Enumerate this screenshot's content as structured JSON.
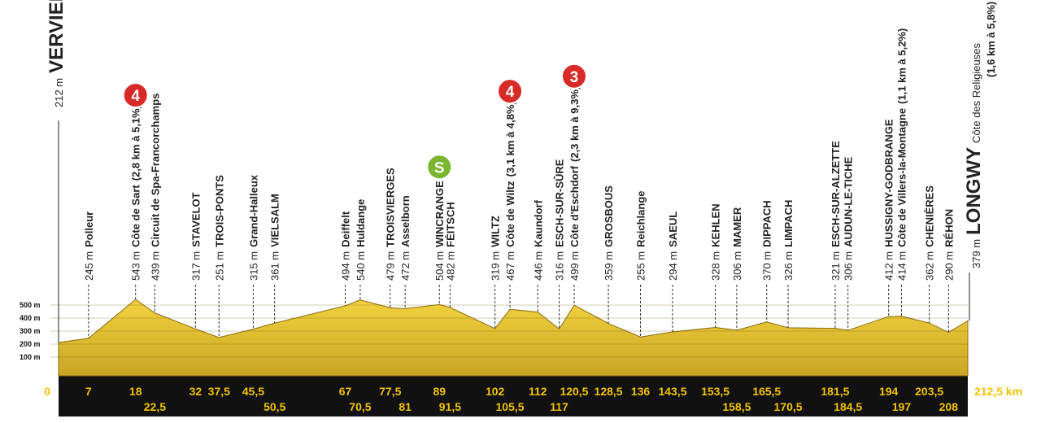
{
  "chart_data": {
    "type": "area",
    "x": [
      0,
      7,
      18,
      22.5,
      32,
      37.5,
      45.5,
      50.5,
      67,
      70.5,
      77.5,
      81,
      89,
      91.5,
      102,
      105.5,
      112,
      117,
      120.5,
      128.5,
      136,
      143.5,
      153.5,
      158.5,
      165.5,
      170.5,
      181.5,
      184.5,
      194,
      197,
      203.5,
      208,
      212.5
    ],
    "values": [
      212,
      245,
      543,
      439,
      317,
      251,
      315,
      361,
      494,
      540,
      479,
      472,
      504,
      482,
      319,
      467,
      446,
      316,
      499,
      359,
      255,
      294,
      328,
      306,
      370,
      326,
      321,
      306,
      412,
      414,
      362,
      290,
      379
    ],
    "value_labels": [
      "212 m",
      "245 m",
      "543 m",
      "439 m",
      "317 m",
      "251 m",
      "315 m",
      "361 m",
      "494 m",
      "540 m",
      "479 m",
      "472 m",
      "504 m",
      "482 m",
      "319 m",
      "467 m",
      "446 m",
      "316 m",
      "499 m",
      "359 m",
      "255 m",
      "294 m",
      "328 m",
      "306 m",
      "370 m",
      "326 m",
      "321 m",
      "306 m",
      "412 m",
      "414 m",
      "362 m",
      "290 m",
      "379 m"
    ],
    "names": [
      "VERVIERS",
      "Polleur",
      "Côte de Sart",
      "Circuit de Spa-Francorchamps",
      "STAVELOT",
      "TROIS-PONTS",
      "Grand-Halleux",
      "VIELSALM",
      "Deiffelt",
      "Huldange",
      "TROISVIERGES",
      "Asselborn",
      "WINCRANGE",
      "FÉITSCH",
      "WILTZ",
      "Côte de Wiltz",
      "Kaundorf",
      "ESCH-SUR-SÛRE",
      "Côte d'Eschdorf",
      "GROSBOUS",
      "Reichlange",
      "SAEUL",
      "KEHLEN",
      "MAMER",
      "DIPPACH",
      "LIMPACH",
      "ESCH-SUR-ALZETTE",
      "AUDUN-LE-TICHE",
      "HUSSIGNY-GODBRANGE",
      "Côte de Villers-la-Montagne",
      "CHENIÈRES",
      "RÉHON",
      "LONGWY"
    ],
    "details": [
      null,
      null,
      "(2,8 km à 5,1%)",
      null,
      null,
      null,
      null,
      null,
      null,
      null,
      null,
      null,
      null,
      null,
      null,
      "(3,1 km à 4,8%)",
      null,
      null,
      "(2,3 km à 9,3%)",
      null,
      null,
      null,
      null,
      null,
      null,
      null,
      null,
      null,
      null,
      "(1,1 km à 5,2%)",
      null,
      null,
      null
    ],
    "badges": [
      null,
      null,
      "4",
      null,
      null,
      null,
      null,
      null,
      null,
      null,
      null,
      null,
      "S",
      null,
      null,
      "4",
      null,
      null,
      "3",
      null,
      null,
      null,
      null,
      null,
      null,
      null,
      null,
      null,
      null,
      null,
      null,
      null,
      null
    ],
    "finish_climb": "Côte des Religieuses",
    "finish_climb_detail": "(1,6 km à 5,8%)",
    "color": "#e6c53a",
    "xlim": [
      0,
      212.5
    ],
    "ylim": [
      0,
      500
    ],
    "xticks": [
      0,
      7,
      18,
      {
        "value": 22.5,
        "label": "22,5"
      },
      32,
      {
        "value": 37.5,
        "label": "37,5"
      },
      {
        "value": 45.5,
        "label": "45,5"
      },
      {
        "value": 50.5,
        "label": "50,5"
      },
      67,
      {
        "value": 70.5,
        "label": "70,5"
      },
      {
        "value": 77.5,
        "label": "77,5"
      },
      81,
      89,
      {
        "value": 91.5,
        "label": "91,5"
      },
      102,
      {
        "value": 105.5,
        "label": "105,5"
      },
      112,
      117,
      {
        "value": 120.5,
        "label": "120,5"
      },
      {
        "value": 128.5,
        "label": "128,5"
      },
      136,
      {
        "value": 143.5,
        "label": "143,5"
      },
      {
        "value": 153.5,
        "label": "153,5"
      },
      {
        "value": 158.5,
        "label": "158,5"
      },
      {
        "value": 165.5,
        "label": "165,5"
      },
      {
        "value": 170.5,
        "label": "170,5"
      },
      {
        "value": 181.5,
        "label": "181,5"
      },
      {
        "value": 184.5,
        "label": "184,5"
      },
      194,
      197,
      {
        "value": 203.5,
        "label": "203,5"
      },
      208,
      {
        "value": 212.5,
        "label": "212,5 km"
      }
    ],
    "yticks": [
      {
        "value": 100,
        "label": "100 m"
      },
      {
        "value": 200,
        "label": "200 m"
      },
      {
        "value": 300,
        "label": "300 m"
      },
      {
        "value": 400,
        "label": "400 m"
      },
      {
        "value": 500,
        "label": "500 m"
      }
    ],
    "grid": true
  }
}
